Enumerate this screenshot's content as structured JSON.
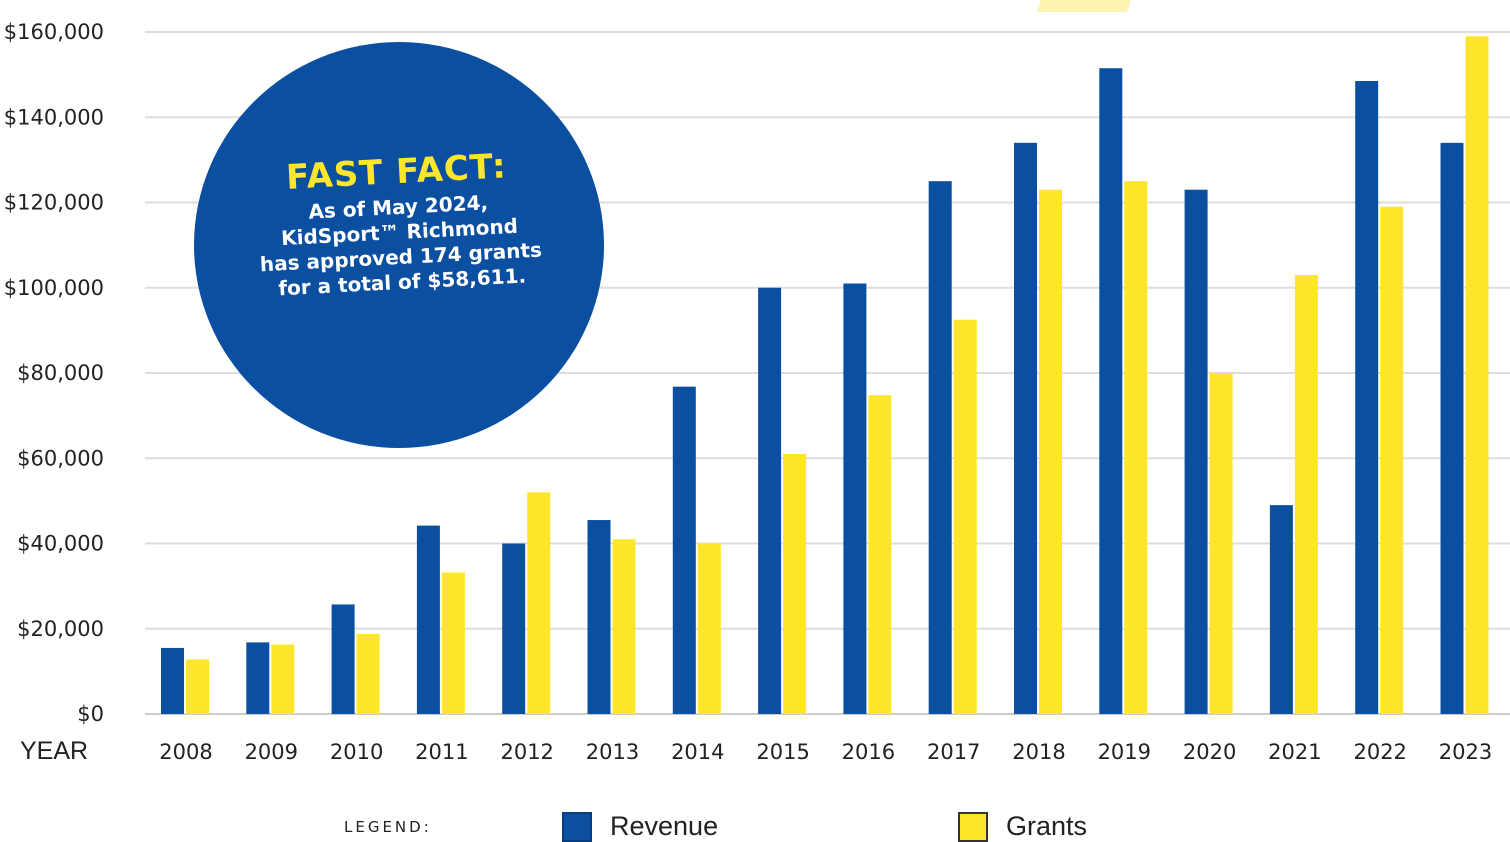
{
  "chart_data": {
    "type": "bar",
    "title": "",
    "xlabel": "YEAR",
    "ylabel": "",
    "ylim": [
      0,
      160000
    ],
    "yticks": [
      "$0",
      "$20,000",
      "$40,000",
      "$60,000",
      "$80,000",
      "$100,000",
      "$120,000",
      "$140,000",
      "$160,000"
    ],
    "grid": true,
    "legend_position": "bottom",
    "legend_title": "LEGEND:",
    "categories": [
      "2008",
      "2009",
      "2010",
      "2011",
      "2012",
      "2013",
      "2014",
      "2015",
      "2016",
      "2017",
      "2018",
      "2019",
      "2020",
      "2021",
      "2022",
      "2023"
    ],
    "series": [
      {
        "name": "Revenue",
        "color": "#0b4fa1",
        "values": [
          15500,
          16800,
          25700,
          44200,
          40000,
          45500,
          76800,
          100000,
          101000,
          125000,
          134000,
          151500,
          123000,
          49000,
          148500,
          134000
        ]
      },
      {
        "name": "Grants",
        "color": "#ffe62a",
        "values": [
          12800,
          16300,
          18800,
          33200,
          52000,
          41000,
          40000,
          61000,
          74800,
          92500,
          123000,
          125000,
          80000,
          103000,
          119000,
          159000
        ]
      }
    ]
  },
  "fast_fact": {
    "title": "FAST FACT:",
    "lines": [
      "As of May 2024,",
      "KidSport™ Richmond",
      "has approved 174 grants",
      "for a total of $58,611."
    ],
    "background": "#0b4fa1",
    "title_color": "#ffe62a"
  }
}
